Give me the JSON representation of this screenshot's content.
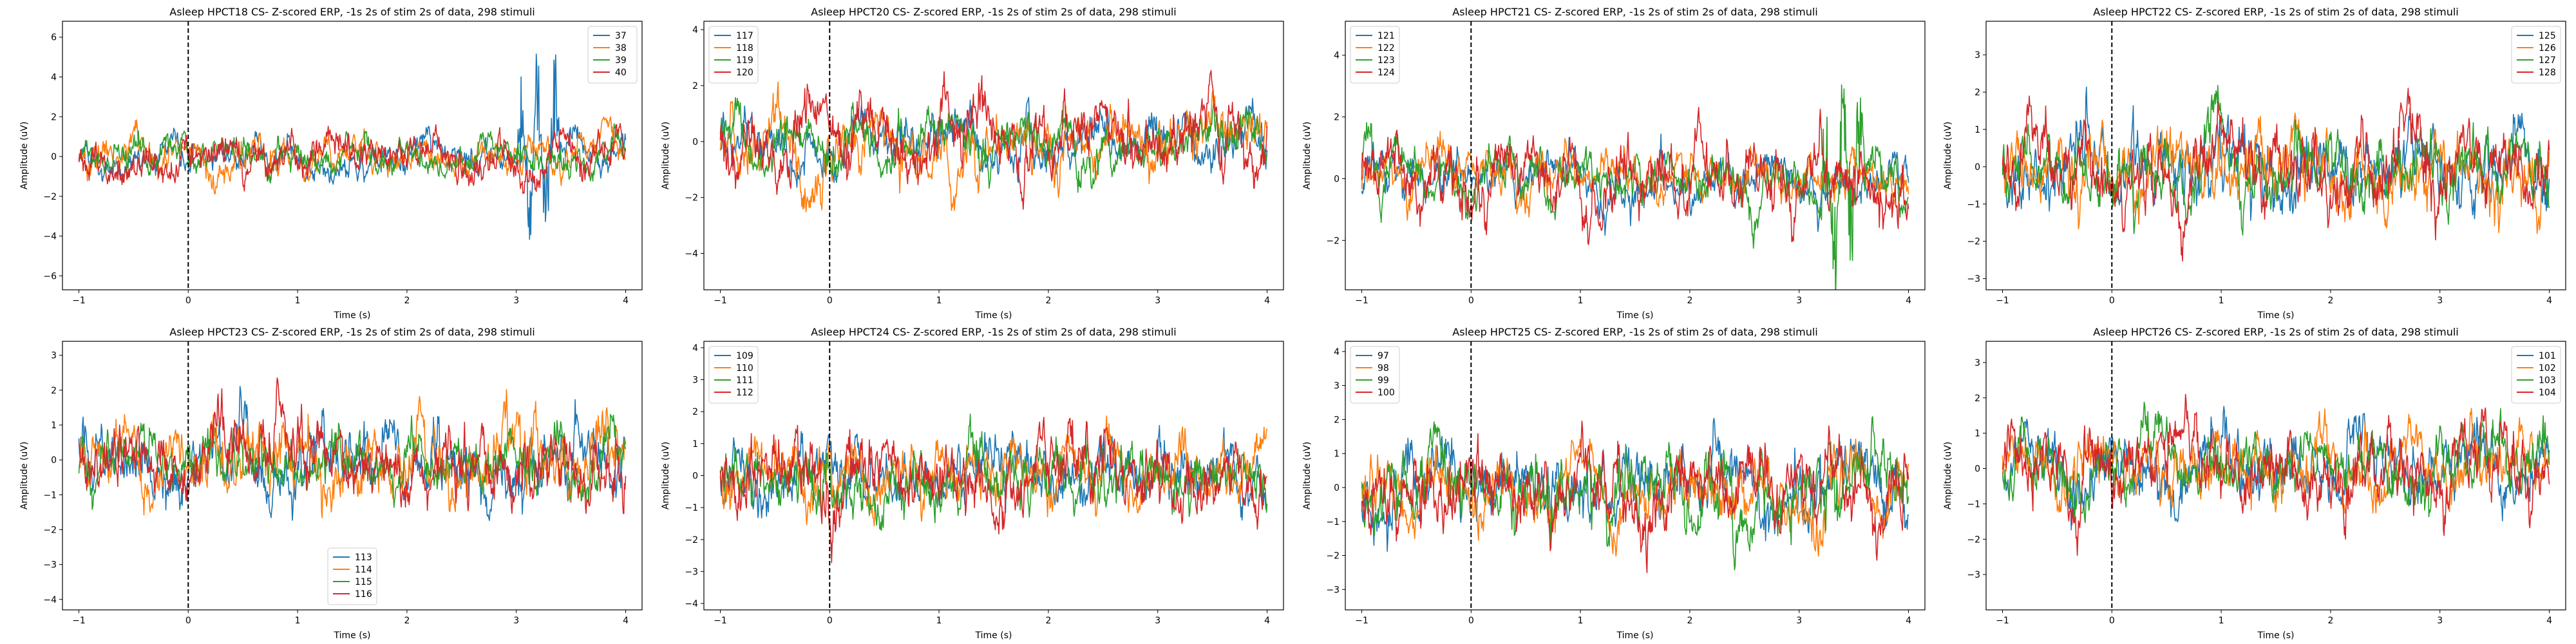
{
  "colors": {
    "series": [
      "#1f77b4",
      "#ff7f0e",
      "#2ca02c",
      "#d62728"
    ],
    "stim_line": "#000000"
  },
  "chart_data": [
    {
      "type": "line",
      "title": "Asleep HPCT18 CS- Z-scored ERP, -1s 2s of stim 2s of data, 298 stimuli",
      "xlabel": "Time (s)",
      "ylabel": "Amplitude (uV)",
      "xlim": [
        -1.15,
        4.15
      ],
      "ylim": [
        -6.7,
        6.8
      ],
      "xticks": [
        -1,
        0,
        1,
        2,
        3,
        4
      ],
      "yticks": [
        -6,
        -4,
        -2,
        0,
        2,
        4,
        6
      ],
      "legend": "top-right",
      "grid": false,
      "stim_line_x": 0,
      "series": [
        {
          "name": "37",
          "amplitude": 0.9,
          "burst": [
            3.0,
            3.4,
            5.0
          ]
        },
        {
          "name": "38",
          "amplitude": 1.0
        },
        {
          "name": "39",
          "amplitude": 0.9
        },
        {
          "name": "40",
          "amplitude": 1.1
        }
      ]
    },
    {
      "type": "line",
      "title": "Asleep HPCT20 CS- Z-scored ERP, -1s 2s of stim 2s of data, 298 stimuli",
      "xlabel": "Time (s)",
      "ylabel": "Amplitude (uV)",
      "xlim": [
        -1.15,
        4.15
      ],
      "ylim": [
        -5.3,
        4.3
      ],
      "xticks": [
        -1,
        0,
        1,
        2,
        3,
        4
      ],
      "yticks": [
        -4,
        -2,
        0,
        2,
        4
      ],
      "legend": "top-left",
      "grid": false,
      "stim_line_x": 0,
      "series": [
        {
          "name": "117",
          "amplitude": 1.0
        },
        {
          "name": "118",
          "amplitude": 1.2
        },
        {
          "name": "119",
          "amplitude": 1.0
        },
        {
          "name": "120",
          "amplitude": 1.3
        }
      ]
    },
    {
      "type": "line",
      "title": "Asleep HPCT21 CS- Z-scored ERP, -1s 2s of stim 2s of data, 298 stimuli",
      "xlabel": "Time (s)",
      "ylabel": "Amplitude (uV)",
      "xlim": [
        -1.15,
        4.15
      ],
      "ylim": [
        -3.6,
        5.1
      ],
      "xticks": [
        -1,
        0,
        1,
        2,
        3,
        4
      ],
      "yticks": [
        -2,
        0,
        2,
        4
      ],
      "legend": "top-left",
      "grid": false,
      "stim_line_x": 0,
      "series": [
        {
          "name": "121",
          "amplitude": 0.8
        },
        {
          "name": "122",
          "amplitude": 0.8
        },
        {
          "name": "123",
          "amplitude": 0.9,
          "burst": [
            3.2,
            3.6,
            4.0
          ]
        },
        {
          "name": "124",
          "amplitude": 1.2
        }
      ]
    },
    {
      "type": "line",
      "title": "Asleep HPCT22 CS- Z-scored ERP, -1s 2s of stim 2s of data, 298 stimuli",
      "xlabel": "Time (s)",
      "ylabel": "Amplitude (uV)",
      "xlim": [
        -1.15,
        4.15
      ],
      "ylim": [
        -3.3,
        3.9
      ],
      "xticks": [
        -1,
        0,
        1,
        2,
        3,
        4
      ],
      "yticks": [
        -3,
        -2,
        -1,
        0,
        1,
        2,
        3
      ],
      "legend": "top-right",
      "grid": false,
      "stim_line_x": 0,
      "series": [
        {
          "name": "125",
          "amplitude": 1.1
        },
        {
          "name": "126",
          "amplitude": 1.0
        },
        {
          "name": "127",
          "amplitude": 1.0
        },
        {
          "name": "128",
          "amplitude": 1.1
        }
      ]
    },
    {
      "type": "line",
      "title": "Asleep HPCT23 CS- Z-scored ERP, -1s 2s of stim 2s of data, 298 stimuli",
      "xlabel": "Time (s)",
      "ylabel": "Amplitude (uV)",
      "xlim": [
        -1.15,
        4.15
      ],
      "ylim": [
        -4.3,
        3.4
      ],
      "xticks": [
        -1,
        0,
        1,
        2,
        3,
        4
      ],
      "yticks": [
        -4,
        -3,
        -2,
        -1,
        0,
        1,
        2,
        3
      ],
      "legend": "bottom-center",
      "grid": false,
      "stim_line_x": 0,
      "series": [
        {
          "name": "113",
          "amplitude": 1.1
        },
        {
          "name": "114",
          "amplitude": 1.1
        },
        {
          "name": "115",
          "amplitude": 0.9
        },
        {
          "name": "116",
          "amplitude": 1.1
        }
      ]
    },
    {
      "type": "line",
      "title": "Asleep HPCT24 CS- Z-scored ERP, -1s 2s of stim 2s of data, 298 stimuli",
      "xlabel": "Time (s)",
      "ylabel": "Amplitude (uV)",
      "xlim": [
        -1.15,
        4.15
      ],
      "ylim": [
        -4.2,
        4.2
      ],
      "xticks": [
        -1,
        0,
        1,
        2,
        3,
        4
      ],
      "yticks": [
        -4,
        -3,
        -2,
        -1,
        0,
        1,
        2,
        3,
        4
      ],
      "legend": "top-left",
      "grid": false,
      "stim_line_x": 0,
      "series": [
        {
          "name": "109",
          "amplitude": 1.0
        },
        {
          "name": "110",
          "amplitude": 1.0
        },
        {
          "name": "111",
          "amplitude": 1.1
        },
        {
          "name": "112",
          "amplitude": 1.2
        }
      ]
    },
    {
      "type": "line",
      "title": "Asleep HPCT25 CS- Z-scored ERP, -1s 2s of stim 2s of data, 298 stimuli",
      "xlabel": "Time (s)",
      "ylabel": "Amplitude (uV)",
      "xlim": [
        -1.15,
        4.15
      ],
      "ylim": [
        -3.6,
        4.3
      ],
      "xticks": [
        -1,
        0,
        1,
        2,
        3,
        4
      ],
      "yticks": [
        -3,
        -2,
        -1,
        0,
        1,
        2,
        3,
        4
      ],
      "legend": "top-left",
      "grid": false,
      "stim_line_x": 0,
      "series": [
        {
          "name": "97",
          "amplitude": 1.1
        },
        {
          "name": "98",
          "amplitude": 1.0
        },
        {
          "name": "99",
          "amplitude": 1.2
        },
        {
          "name": "100",
          "amplitude": 1.2
        }
      ]
    },
    {
      "type": "line",
      "title": "Asleep HPCT26 CS- Z-scored ERP, -1s 2s of stim 2s of data, 298 stimuli",
      "xlabel": "Time (s)",
      "ylabel": "Amplitude (uV)",
      "xlim": [
        -1.15,
        4.15
      ],
      "ylim": [
        -4.0,
        3.6
      ],
      "xticks": [
        -1,
        0,
        1,
        2,
        3,
        4
      ],
      "yticks": [
        -3,
        -2,
        -1,
        0,
        1,
        2,
        3
      ],
      "legend": "top-right",
      "grid": false,
      "stim_line_x": 0,
      "series": [
        {
          "name": "101",
          "amplitude": 1.0
        },
        {
          "name": "102",
          "amplitude": 1.0
        },
        {
          "name": "103",
          "amplitude": 1.0
        },
        {
          "name": "104",
          "amplitude": 1.1
        }
      ]
    }
  ]
}
